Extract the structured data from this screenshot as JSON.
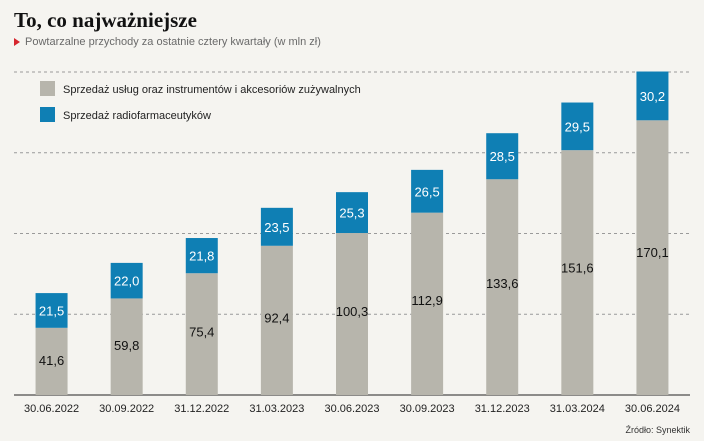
{
  "header": {
    "title": "To, co najważniejsze",
    "subtitle": "Powtarzalne przychody za ostatnie cztery kwartały (w mln zł)"
  },
  "source": "Źródło: Synektik",
  "colors": {
    "series_a": "#b7b5ac",
    "series_b": "#0f7fb4",
    "grid": "#9a9a9a",
    "accent": "#d6262e"
  },
  "chart_data": {
    "type": "bar",
    "stacked": true,
    "categories": [
      "30.06.2022",
      "30.09.2022",
      "31.12.2022",
      "31.03.2023",
      "30.06.2023",
      "30.09.2023",
      "31.12.2023",
      "31.03.2024",
      "30.06.2024"
    ],
    "series": [
      {
        "name": "Sprzedaż usług oraz instrumentów i akcesoriów zużywalnych",
        "values": [
          41.6,
          59.8,
          75.4,
          92.4,
          100.3,
          112.9,
          133.6,
          151.6,
          170.1
        ],
        "labels": [
          "41,6",
          "59,8",
          "75,4",
          "92,4",
          "100,3",
          "112,9",
          "133,6",
          "151,6",
          "170,1"
        ]
      },
      {
        "name": "Sprzedaż radiofarmaceutyków",
        "values": [
          21.5,
          22.0,
          21.8,
          23.5,
          25.3,
          26.5,
          28.5,
          29.5,
          30.2
        ],
        "labels": [
          "21,5",
          "22,0",
          "21,8",
          "23,5",
          "25,3",
          "26,5",
          "28,5",
          "29,5",
          "30,2"
        ]
      }
    ],
    "ylim": [
      0,
      200
    ],
    "grid": true,
    "legend_position": "top-left"
  }
}
